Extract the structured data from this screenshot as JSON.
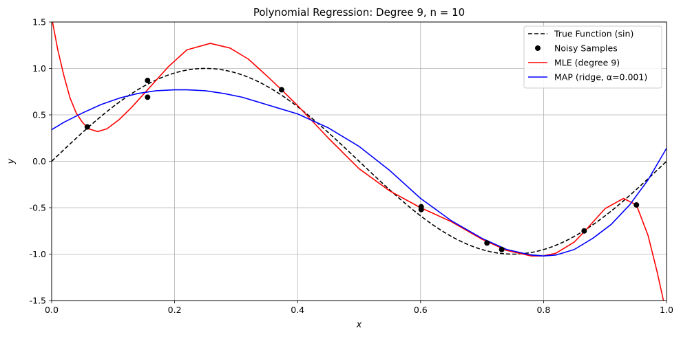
{
  "chart_data": {
    "type": "line",
    "title": "Polynomial Regression: Degree 9, n = 10",
    "xlabel": "x",
    "ylabel": "y",
    "xlim": [
      0,
      1
    ],
    "ylim": [
      -1.5,
      1.5
    ],
    "xticks": [
      "0.0",
      "0.2",
      "0.4",
      "0.6",
      "0.8",
      "1.0"
    ],
    "yticks": [
      "-1.5",
      "-1.0",
      "-0.5",
      "0.0",
      "0.5",
      "1.0",
      "1.5"
    ],
    "grid": true,
    "legend_position": "top-right",
    "series": [
      {
        "name": "True Function (sin)",
        "kind": "line",
        "style": "dashed",
        "color": "#000000",
        "function": "sin(2*pi*x)"
      },
      {
        "name": "Noisy Samples",
        "kind": "scatter",
        "color": "#000000",
        "x": [
          0.058,
          0.156,
          0.156,
          0.374,
          0.601,
          0.601,
          0.708,
          0.732,
          0.866,
          0.951
        ],
        "y": [
          0.37,
          0.87,
          0.69,
          0.77,
          -0.52,
          -0.49,
          -0.88,
          -0.95,
          -0.75,
          -0.47
        ]
      },
      {
        "name": "MLE (degree 9)",
        "kind": "line",
        "color": "#ff0000",
        "x": [
          0.0,
          0.01,
          0.02,
          0.03,
          0.04,
          0.05,
          0.06,
          0.075,
          0.09,
          0.11,
          0.13,
          0.156,
          0.19,
          0.22,
          0.258,
          0.29,
          0.32,
          0.35,
          0.374,
          0.4,
          0.45,
          0.5,
          0.55,
          0.6,
          0.65,
          0.7,
          0.74,
          0.78,
          0.8,
          0.82,
          0.85,
          0.866,
          0.9,
          0.93,
          0.951,
          0.97,
          0.985,
          0.995,
          1.0
        ],
        "y": [
          1.55,
          1.2,
          0.92,
          0.68,
          0.52,
          0.42,
          0.35,
          0.32,
          0.35,
          0.45,
          0.58,
          0.77,
          1.02,
          1.2,
          1.27,
          1.22,
          1.1,
          0.92,
          0.77,
          0.6,
          0.25,
          -0.08,
          -0.32,
          -0.5,
          -0.65,
          -0.84,
          -0.96,
          -1.02,
          -1.02,
          -0.99,
          -0.87,
          -0.76,
          -0.51,
          -0.4,
          -0.47,
          -0.8,
          -1.2,
          -1.5,
          -1.7
        ]
      },
      {
        "name": "MAP (ridge, α=0.001)",
        "kind": "line",
        "color": "#0000ff",
        "x": [
          0.0,
          0.02,
          0.05,
          0.08,
          0.11,
          0.14,
          0.17,
          0.2,
          0.22,
          0.25,
          0.28,
          0.31,
          0.34,
          0.37,
          0.4,
          0.45,
          0.5,
          0.55,
          0.6,
          0.65,
          0.7,
          0.74,
          0.78,
          0.8,
          0.82,
          0.85,
          0.88,
          0.91,
          0.94,
          0.97,
          1.0
        ],
        "y": [
          0.34,
          0.42,
          0.52,
          0.61,
          0.68,
          0.73,
          0.76,
          0.77,
          0.77,
          0.76,
          0.73,
          0.69,
          0.63,
          0.57,
          0.51,
          0.36,
          0.16,
          -0.1,
          -0.4,
          -0.64,
          -0.83,
          -0.95,
          -1.01,
          -1.02,
          -1.01,
          -0.95,
          -0.83,
          -0.68,
          -0.47,
          -0.2,
          0.14
        ]
      }
    ]
  }
}
